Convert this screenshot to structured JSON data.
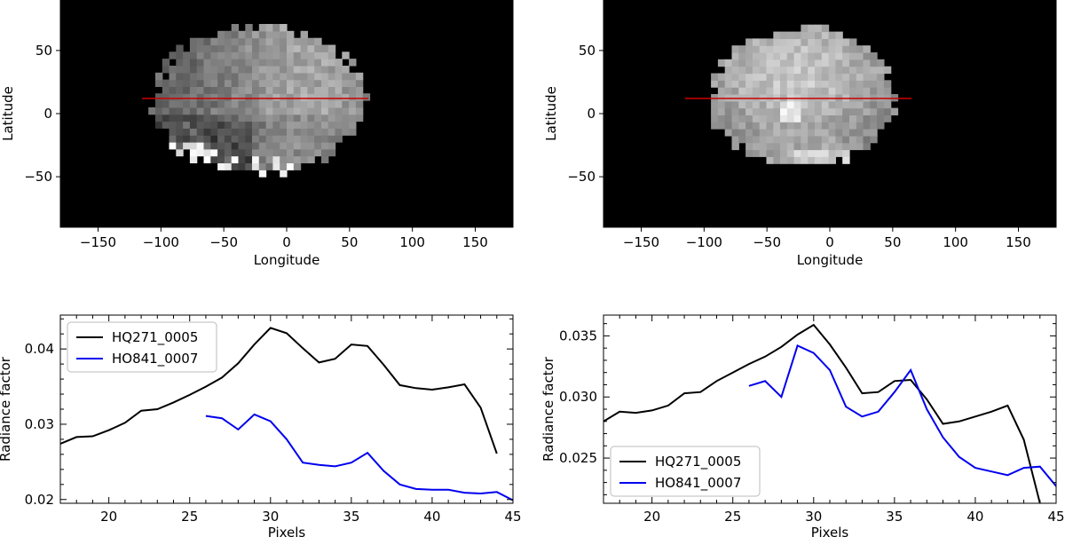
{
  "chart_data": [
    {
      "type": "heatmap",
      "panel": "top-left",
      "xlabel": "Longitude",
      "ylabel": "Latitude",
      "xlim": [
        -180,
        180
      ],
      "ylim": [
        -90,
        90
      ],
      "xticks": [
        -150,
        -100,
        -50,
        0,
        50,
        100,
        150
      ],
      "yticks": [
        -50,
        0,
        50
      ],
      "profile_line": {
        "lon_start": -115,
        "lon_end": 65,
        "lat": 12,
        "color": "#cc0000"
      },
      "image_extent": {
        "lon_min": -110,
        "lon_max": 60,
        "lat_min": -50,
        "lat_max": 67
      },
      "background": "#000000"
    },
    {
      "type": "heatmap",
      "panel": "top-right",
      "xlabel": "Longitude",
      "ylabel": "Latitude",
      "xlim": [
        -180,
        180
      ],
      "ylim": [
        -90,
        90
      ],
      "xticks": [
        -150,
        -100,
        -50,
        0,
        50,
        100,
        150
      ],
      "yticks": [
        -50,
        0,
        50
      ],
      "profile_line": {
        "lon_start": -115,
        "lon_end": 65,
        "lat": 12,
        "color": "#cc0000"
      },
      "image_extent": {
        "lon_min": -100,
        "lon_max": 50,
        "lat_min": -45,
        "lat_max": 65
      },
      "background": "#000000"
    },
    {
      "type": "line",
      "panel": "bottom-left",
      "xlabel": "Pixels",
      "ylabel": "Radiance factor",
      "xlim": [
        17,
        45
      ],
      "ylim": [
        0.0195,
        0.0445
      ],
      "xticks": [
        20,
        25,
        30,
        35,
        40,
        45
      ],
      "yticks": [
        0.02,
        0.03,
        0.04
      ],
      "ytick_labels": [
        "0.02",
        "0.03",
        "0.04"
      ],
      "legend_position": "top-left",
      "series": [
        {
          "name": "HQ271_0005",
          "color": "#000000",
          "x": [
            17,
            18,
            19,
            20,
            21,
            22,
            23,
            24,
            25,
            26,
            27,
            28,
            29,
            30,
            31,
            32,
            33,
            34,
            35,
            36,
            37,
            38,
            39,
            40,
            41,
            42,
            43,
            44
          ],
          "y": [
            0.0274,
            0.0283,
            0.0284,
            0.0292,
            0.0302,
            0.0318,
            0.032,
            0.0329,
            0.0339,
            0.035,
            0.0362,
            0.0381,
            0.0406,
            0.0428,
            0.0421,
            0.0401,
            0.0382,
            0.0387,
            0.0406,
            0.0404,
            0.0379,
            0.0352,
            0.0348,
            0.0346,
            0.0349,
            0.0353,
            0.0322,
            0.0261
          ]
        },
        {
          "name": "HO841_0007",
          "color": "#0000ee",
          "x": [
            26,
            27,
            28,
            29,
            30,
            31,
            32,
            33,
            34,
            35,
            36,
            37,
            38,
            39,
            40,
            41,
            42,
            43,
            44,
            45
          ],
          "y": [
            0.0311,
            0.0308,
            0.0293,
            0.0313,
            0.0304,
            0.028,
            0.0249,
            0.0246,
            0.0244,
            0.0249,
            0.0262,
            0.0238,
            0.022,
            0.0214,
            0.0213,
            0.0213,
            0.0209,
            0.0208,
            0.021,
            0.0199
          ]
        }
      ]
    },
    {
      "type": "line",
      "panel": "bottom-right",
      "xlabel": "Pixels",
      "ylabel": "Radiance factor",
      "xlim": [
        17,
        45
      ],
      "ylim": [
        0.0213,
        0.0367
      ],
      "xticks": [
        20,
        25,
        30,
        35,
        40,
        45
      ],
      "yticks": [
        0.025,
        0.03,
        0.035
      ],
      "ytick_labels": [
        "0.025",
        "0.030",
        "0.035"
      ],
      "legend_position": "bottom-left",
      "series": [
        {
          "name": "HQ271_0005",
          "color": "#000000",
          "x": [
            17,
            18,
            19,
            20,
            21,
            22,
            23,
            24,
            25,
            26,
            27,
            28,
            29,
            30,
            31,
            32,
            33,
            34,
            35,
            36,
            37,
            38,
            39,
            40,
            41,
            42,
            43,
            44
          ],
          "y": [
            0.028,
            0.0288,
            0.0287,
            0.0289,
            0.0293,
            0.0303,
            0.0304,
            0.0313,
            0.032,
            0.0327,
            0.0333,
            0.0341,
            0.0351,
            0.0359,
            0.0343,
            0.0324,
            0.0303,
            0.0304,
            0.0313,
            0.0314,
            0.0298,
            0.0278,
            0.028,
            0.0284,
            0.0288,
            0.0293,
            0.0265,
            0.0213
          ]
        },
        {
          "name": "HO841_0007",
          "color": "#0000ee",
          "x": [
            26,
            27,
            28,
            29,
            30,
            31,
            32,
            33,
            34,
            35,
            36,
            37,
            38,
            39,
            40,
            41,
            42,
            43,
            44,
            45
          ],
          "y": [
            0.0309,
            0.0313,
            0.03,
            0.0342,
            0.0336,
            0.0322,
            0.0292,
            0.0284,
            0.0288,
            0.0304,
            0.0322,
            0.029,
            0.0267,
            0.0251,
            0.0242,
            0.0239,
            0.0236,
            0.0242,
            0.0243,
            0.0227
          ]
        }
      ]
    }
  ]
}
